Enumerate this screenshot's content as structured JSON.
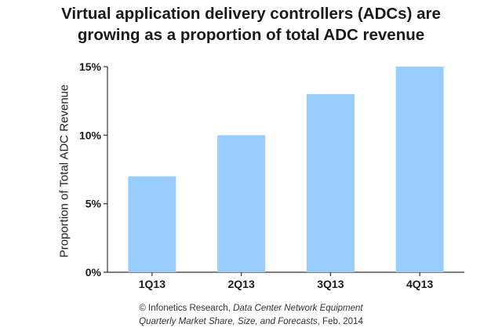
{
  "chart_data": {
    "type": "bar",
    "title_lines": [
      "Virtual application delivery controllers (ADCs) are",
      "growing as a proportion of total ADC revenue"
    ],
    "xlabel": "",
    "ylabel": "Proportion of Total ADC Revenue",
    "categories": [
      "1Q13",
      "2Q13",
      "3Q13",
      "4Q13"
    ],
    "values": [
      7,
      10,
      13,
      15
    ],
    "ylim": [
      0,
      15
    ],
    "yticks": [
      0,
      5,
      10,
      15
    ],
    "ytick_labels": [
      "0%",
      "5%",
      "10%",
      "15%"
    ],
    "bar_color": "#99ccff",
    "grid": false,
    "legend": "none"
  },
  "source": {
    "line1_prefix": "© Infonetics Research, ",
    "line1_italic": "Data Center Network Equipment",
    "line2_italic": "Quarterly Market Share, Size, and Forecasts",
    "line2_suffix": ", Feb. 2014"
  }
}
